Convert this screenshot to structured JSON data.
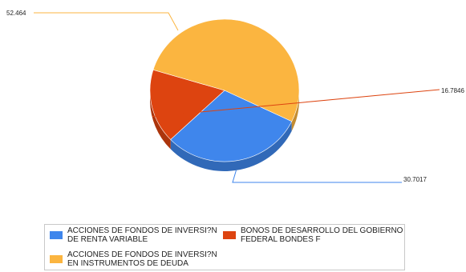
{
  "chart_data": {
    "type": "pie",
    "categories": [
      "ACCIONES DE FONDOS DE INVERSI?N DE RENTA VARIABLE",
      "BONOS DE DESARROLLO DEL GOBIERNO FEDERAL BONDES F",
      "ACCIONES DE FONDOS DE INVERSI?N EN INSTRUMENTOS DE DEUDA"
    ],
    "values": [
      30.7017,
      16.7846,
      52.464
    ],
    "data_labels": [
      "30.7017",
      "16.7846",
      "52.464"
    ],
    "colors": [
      "#3f86ec",
      "#dd4410",
      "#fbb540"
    ],
    "title": "",
    "legend_placement": "bottom"
  },
  "legend": {
    "items": [
      {
        "label_line1": "ACCIONES DE FONDOS DE INVERSI?N",
        "label_line2": "DE RENTA VARIABLE",
        "color": "#3f86ec"
      },
      {
        "label_line1": "BONOS DE DESARROLLO DEL GOBIERNO",
        "label_line2": "FEDERAL BONDES F",
        "color": "#dd4410"
      },
      {
        "label_line1": "ACCIONES DE FONDOS DE INVERSI?N",
        "label_line2": "EN INSTRUMENTOS DE DEUDA",
        "color": "#fbb540"
      }
    ]
  }
}
